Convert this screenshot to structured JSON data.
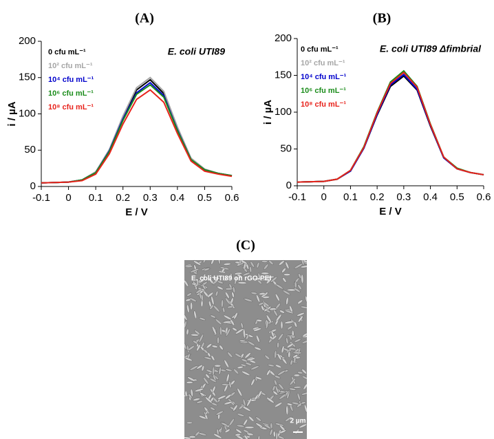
{
  "chart_data": [
    {
      "type": "line",
      "title": "(A)",
      "annotation": "E. coli UTI89",
      "x_label": "E / V",
      "y_label": "i / µA",
      "x": [
        -0.1,
        -0.05,
        0,
        0.05,
        0.1,
        0.15,
        0.2,
        0.25,
        0.3,
        0.35,
        0.4,
        0.45,
        0.5,
        0.55,
        0.6
      ],
      "xlim": [
        -0.1,
        0.6
      ],
      "xticks": [
        -0.1,
        0,
        0.1,
        0.2,
        0.3,
        0.4,
        0.5,
        0.6
      ],
      "ylim": [
        0,
        200
      ],
      "yticks": [
        0,
        50,
        100,
        150,
        200
      ],
      "series": [
        {
          "name": "0 cfu mL⁻¹",
          "color": "#000000",
          "values": [
            5,
            5.5,
            6,
            9,
            20,
            50,
            95,
            133,
            147,
            128,
            80,
            38,
            23,
            18,
            15
          ]
        },
        {
          "name": "10² cfu mL⁻¹",
          "color": "#a6a6a6",
          "values": [
            5,
            5.5,
            6,
            9,
            20,
            51,
            97,
            136,
            150,
            131,
            82,
            39,
            24,
            18,
            15
          ]
        },
        {
          "name": "10⁴ cfu mL⁻¹",
          "color": "#0000cc",
          "values": [
            5,
            5.5,
            6,
            9,
            19,
            49,
            93,
            129,
            143,
            125,
            78,
            37,
            23,
            18,
            15
          ]
        },
        {
          "name": "10⁶ cfu mL⁻¹",
          "color": "#1a8c1a",
          "values": [
            5,
            5.5,
            6,
            9,
            19,
            48,
            91,
            127,
            140,
            123,
            77,
            37,
            23,
            18,
            15
          ]
        },
        {
          "name": "10⁸ cfu mL⁻¹",
          "color": "#e8221b",
          "values": [
            5,
            5.5,
            6,
            8,
            17,
            45,
            86,
            120,
            133,
            116,
            73,
            35,
            21,
            17,
            14
          ]
        }
      ]
    },
    {
      "type": "line",
      "title": "(B)",
      "annotation": "E. coli UTI89 Δfimbrial",
      "x_label": "E / V",
      "y_label": "i / µA",
      "x": [
        -0.1,
        -0.05,
        0,
        0.05,
        0.1,
        0.15,
        0.2,
        0.25,
        0.3,
        0.35,
        0.4,
        0.45,
        0.5,
        0.55,
        0.6
      ],
      "xlim": [
        -0.1,
        0.6
      ],
      "xticks": [
        -0.1,
        0,
        0.1,
        0.2,
        0.3,
        0.4,
        0.5,
        0.6
      ],
      "ylim": [
        0,
        200
      ],
      "yticks": [
        0,
        50,
        100,
        150,
        200
      ],
      "series": [
        {
          "name": "0 cfu mL⁻¹",
          "color": "#000000",
          "values": [
            5,
            5.5,
            6,
            9,
            20,
            51,
            96,
            135,
            149,
            130,
            81,
            38,
            23,
            18,
            15
          ]
        },
        {
          "name": "10² cfu mL⁻¹",
          "color": "#a6a6a6",
          "values": [
            5,
            5.5,
            6,
            9,
            20,
            52,
            98,
            138,
            153,
            133,
            83,
            39,
            23,
            18,
            15
          ]
        },
        {
          "name": "10⁴ cfu mL⁻¹",
          "color": "#0000cc",
          "values": [
            5,
            5.5,
            6,
            9,
            20,
            51,
            97,
            137,
            151,
            131,
            82,
            38,
            23,
            18,
            15
          ]
        },
        {
          "name": "10⁶ cfu mL⁻¹",
          "color": "#1a8c1a",
          "values": [
            5,
            5.5,
            6,
            9,
            21,
            53,
            100,
            141,
            156,
            135,
            84,
            39,
            24,
            18,
            15
          ]
        },
        {
          "name": "10⁸ cfu mL⁻¹",
          "color": "#e8221b",
          "values": [
            5,
            5.5,
            6,
            9,
            21,
            52,
            99,
            139,
            154,
            134,
            83,
            39,
            23,
            18,
            15
          ]
        }
      ]
    }
  ],
  "image": {
    "label": "(C)",
    "caption": "E. coli UTI89 on rGO-PEI",
    "scale_bar": "2 µm"
  }
}
